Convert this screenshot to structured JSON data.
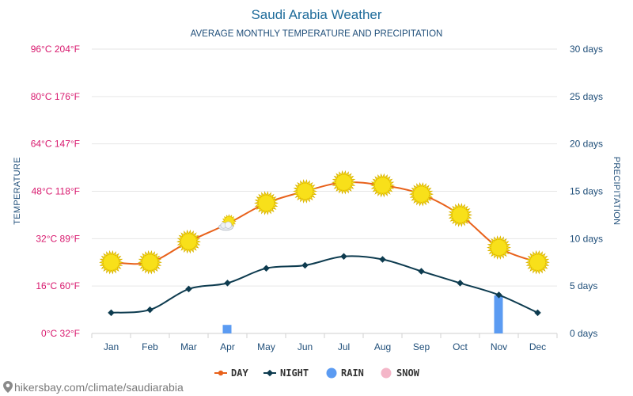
{
  "header": {
    "title": "Saudi Arabia Weather",
    "subtitle": "AVERAGE MONTHLY TEMPERATURE AND PRECIPITATION"
  },
  "source_url": "hikersbay.com/climate/saudiarabia",
  "colors": {
    "day": "#e8611a",
    "night": "#0d3b4f",
    "rain": "#5b9bf2",
    "snow": "#f4b6c8",
    "left_ticks": "#d8196e",
    "right_ticks": "#1f4e79",
    "sun": "#f8e01a"
  },
  "chart_data": {
    "type": "line",
    "title": "Saudi Arabia Weather",
    "subtitle": "AVERAGE MONTHLY TEMPERATURE AND PRECIPITATION",
    "categories": [
      "Jan",
      "Feb",
      "Mar",
      "Apr",
      "May",
      "Jun",
      "Jul",
      "Aug",
      "Sep",
      "Oct",
      "Nov",
      "Dec"
    ],
    "ylabel_left": "TEMPERATURE",
    "ylabel_right": "PRECIPITATION",
    "y_left_ticks": [
      "0°C 32°F",
      "16°C 60°F",
      "32°C 89°F",
      "48°C 118°F",
      "64°C 147°F",
      "80°C 176°F",
      "96°C 204°F"
    ],
    "y_right_ticks": [
      "0 days",
      "5 days",
      "10 days",
      "15 days",
      "20 days",
      "25 days",
      "30 days"
    ],
    "ylim_left": [
      0,
      96
    ],
    "ylim_right": [
      0,
      30
    ],
    "grid": true,
    "legend_position": "bottom-center",
    "series": [
      {
        "name": "DAY",
        "axis": "left",
        "values": [
          24,
          24,
          31,
          37,
          44,
          48,
          51,
          50,
          47,
          40,
          29,
          24
        ]
      },
      {
        "name": "NIGHT",
        "axis": "left",
        "values": [
          7,
          8,
          15,
          17,
          22,
          23,
          26,
          25,
          21,
          17,
          13,
          7
        ]
      },
      {
        "name": "RAIN",
        "axis": "right",
        "type": "bar",
        "values": [
          0,
          0,
          0,
          0.9,
          0,
          0,
          0,
          0,
          0,
          0,
          4,
          0
        ]
      },
      {
        "name": "SNOW",
        "axis": "right",
        "type": "bar",
        "values": [
          0,
          0,
          0,
          0,
          0,
          0,
          0,
          0,
          0,
          0,
          0,
          0
        ]
      }
    ],
    "day_icons": [
      "sun",
      "sun",
      "sun",
      "partly-cloudy",
      "sun",
      "sun",
      "sun",
      "sun",
      "sun",
      "sun",
      "sun",
      "sun"
    ]
  }
}
